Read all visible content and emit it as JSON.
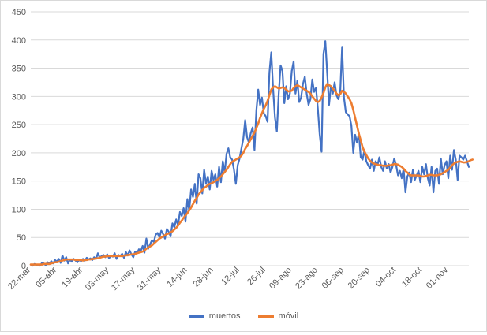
{
  "chart_data": {
    "type": "line",
    "title": "",
    "xlabel": "",
    "ylabel": "",
    "ylim": [
      0,
      450
    ],
    "yticks": [
      "0",
      "50",
      "100",
      "150",
      "200",
      "250",
      "300",
      "350",
      "400",
      "450"
    ],
    "xticks": [
      "22-mar",
      "05-abr",
      "19-abr",
      "03-may",
      "17-may",
      "31-may",
      "14-jun",
      "28-jun",
      "12-jul",
      "26-jul",
      "09-ago",
      "23-ago",
      "06-sep",
      "20-sep",
      "04-oct",
      "18-oct",
      "01-nov"
    ],
    "gridlines": "horizontal",
    "legend": "bottom",
    "first_date": "22-mar",
    "last_date": "10-nov",
    "series": [
      {
        "name": "muertos",
        "color": "#4472C4",
        "values": [
          2,
          0,
          3,
          1,
          2,
          0,
          5,
          4,
          1,
          6,
          3,
          8,
          4,
          10,
          7,
          12,
          5,
          18,
          9,
          15,
          4,
          11,
          7,
          12,
          9,
          6,
          10,
          8,
          12,
          9,
          14,
          11,
          13,
          10,
          15,
          12,
          22,
          14,
          17,
          19,
          15,
          20,
          13,
          18,
          16,
          22,
          12,
          19,
          17,
          21,
          14,
          24,
          18,
          27,
          20,
          15,
          25,
          22,
          29,
          26,
          35,
          23,
          48,
          30,
          38,
          45,
          42,
          55,
          58,
          50,
          62,
          56,
          48,
          65,
          60,
          52,
          75,
          68,
          82,
          72,
          95,
          88,
          102,
          78,
          118,
          98,
          135,
          122,
          145,
          110,
          162,
          155,
          128,
          170,
          145,
          158,
          135,
          168,
          152,
          162,
          140,
          175,
          148,
          185,
          165,
          198,
          208,
          192,
          188,
          170,
          145,
          178,
          190,
          208,
          225,
          258,
          228,
          218,
          235,
          245,
          205,
          275,
          312,
          285,
          298,
          270,
          265,
          255,
          342,
          378,
          312,
          262,
          238,
          305,
          355,
          345,
          288,
          318,
          295,
          305,
          345,
          362,
          305,
          328,
          290,
          298,
          322,
          335,
          305,
          285,
          295,
          330,
          308,
          315,
          278,
          232,
          202,
          375,
          398,
          342,
          285,
          318,
          305,
          325,
          302,
          295,
          308,
          388,
          298,
          272,
          268,
          265,
          248,
          200,
          232,
          218,
          235,
          192,
          188,
          205,
          185,
          178,
          172,
          188,
          168,
          185,
          178,
          192,
          175,
          168,
          185,
          172,
          180,
          165,
          175,
          190,
          178,
          160,
          168,
          155,
          172,
          130,
          158,
          165,
          148,
          170,
          152,
          160,
          168,
          148,
          175,
          162,
          180,
          155,
          142,
          175,
          130,
          168,
          172,
          145,
          190,
          162,
          178,
          185,
          155,
          195,
          170,
          205,
          188,
          152,
          195,
          192,
          188,
          195,
          185,
          175
        ]
      },
      {
        "name": "móvil",
        "color": "#ED7D31",
        "values": [
          2,
          2,
          2,
          2,
          2,
          2,
          2,
          3,
          3,
          3,
          3,
          4,
          5,
          6,
          6,
          7,
          8,
          9,
          10,
          11,
          11,
          11,
          11,
          11,
          10,
          10,
          10,
          10,
          9,
          10,
          10,
          11,
          11,
          12,
          12,
          13,
          13,
          14,
          15,
          16,
          16,
          17,
          17,
          17,
          17,
          17,
          17,
          17,
          17,
          17,
          18,
          18,
          19,
          19,
          20,
          20,
          21,
          22,
          23,
          24,
          25,
          27,
          30,
          32,
          34,
          36,
          39,
          42,
          45,
          48,
          50,
          52,
          54,
          56,
          57,
          59,
          61,
          64,
          67,
          71,
          76,
          80,
          85,
          89,
          93,
          98,
          103,
          109,
          115,
          120,
          126,
          130,
          134,
          138,
          140,
          143,
          145,
          146,
          148,
          150,
          152,
          155,
          158,
          162,
          166,
          170,
          175,
          180,
          184,
          186,
          188,
          190,
          192,
          195,
          200,
          207,
          212,
          218,
          224,
          230,
          236,
          244,
          252,
          262,
          270,
          278,
          284,
          292,
          302,
          312,
          316,
          318,
          316,
          314,
          315,
          316,
          315,
          312,
          309,
          309,
          310,
          315,
          318,
          320,
          318,
          316,
          314,
          312,
          310,
          308,
          305,
          300,
          296,
          292,
          290,
          292,
          298,
          306,
          316,
          322,
          320,
          318,
          314,
          310,
          305,
          302,
          304,
          310,
          308,
          305,
          300,
          295,
          288,
          276,
          262,
          248,
          234,
          222,
          210,
          202,
          196,
          190,
          186,
          183,
          181,
          180,
          179,
          178,
          178,
          177,
          177,
          177,
          178,
          178,
          179,
          180,
          180,
          179,
          177,
          175,
          172,
          168,
          165,
          162,
          160,
          160,
          160,
          160,
          160,
          159,
          158,
          158,
          159,
          160,
          161,
          161,
          160,
          160,
          160,
          161,
          162,
          164,
          166,
          168,
          170,
          174,
          178,
          181,
          183,
          184,
          185,
          184,
          183,
          183,
          184,
          185,
          187,
          188
        ]
      }
    ]
  }
}
